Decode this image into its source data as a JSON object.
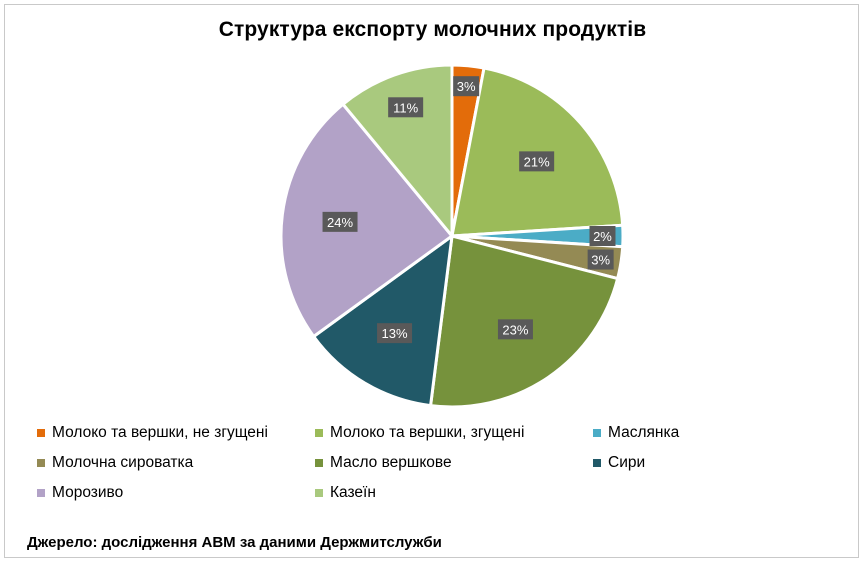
{
  "chart_data": {
    "type": "pie",
    "title": "Структура експорту молочних продуктів",
    "categories": [
      "Молоко та вершки, не згущені",
      "Молоко та вершки, згущені",
      "Маслянка",
      "Молочна сироватка",
      "Масло вершкове",
      "Сири",
      "Морозиво",
      "Казеїн"
    ],
    "values": [
      3,
      21,
      2,
      3,
      23,
      13,
      24,
      11
    ],
    "data_labels": [
      "3%",
      "21%",
      "2%",
      "3%",
      "23%",
      "13%",
      "24%",
      "11%"
    ],
    "colors": [
      "#e36c0a",
      "#9bbb59",
      "#4bacc6",
      "#948a54",
      "#76923c",
      "#215968",
      "#b2a2c7",
      "#a9c97e"
    ],
    "legend_position": "bottom",
    "start_direction": "12 o'clock, clockwise"
  },
  "source_note": "Джерело: дослідження АВМ за даними Держмитслужби"
}
